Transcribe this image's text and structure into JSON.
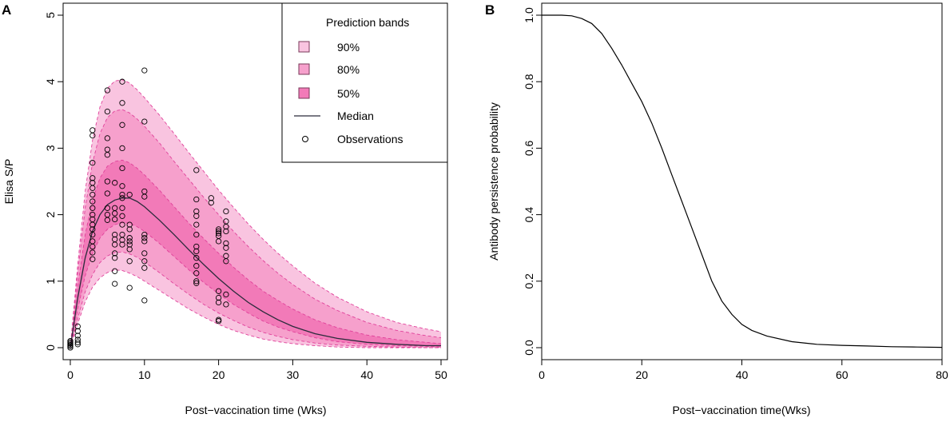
{
  "chart_data": [
    {
      "panel": "A",
      "type": "line",
      "xlabel": "Post−vaccination time (Wks)",
      "ylabel": "Elisa S/P",
      "xlim": [
        0,
        50
      ],
      "ylim": [
        0,
        5
      ],
      "x_ticks": [
        0,
        10,
        20,
        30,
        40,
        50
      ],
      "y_ticks": [
        0,
        1,
        2,
        3,
        4,
        5
      ],
      "legend": {
        "title": "Prediction bands",
        "position": "top-right",
        "entries": [
          {
            "label": "90%",
            "kind": "band",
            "color": "#f9c4e0"
          },
          {
            "label": "80%",
            "kind": "band",
            "color": "#f6a0cc"
          },
          {
            "label": "50%",
            "kind": "band",
            "color": "#f27ab8"
          },
          {
            "label": "Median",
            "kind": "line",
            "color": "#2b2b3b"
          },
          {
            "label": "Observations",
            "kind": "point",
            "color": "#000000"
          }
        ]
      },
      "x": [
        0,
        1,
        2,
        3,
        4,
        5,
        6,
        7,
        8,
        9,
        10,
        12,
        14,
        16,
        18,
        20,
        22,
        24,
        26,
        28,
        30,
        33,
        36,
        40,
        44,
        48,
        50
      ],
      "series": [
        {
          "name": "Median",
          "values": [
            0.0,
            0.75,
            1.35,
            1.75,
            2.0,
            2.15,
            2.22,
            2.25,
            2.25,
            2.2,
            2.12,
            1.92,
            1.7,
            1.47,
            1.25,
            1.04,
            0.85,
            0.68,
            0.54,
            0.42,
            0.32,
            0.21,
            0.14,
            0.08,
            0.05,
            0.03,
            0.03
          ]
        },
        {
          "name": "90% lower",
          "values": [
            0.0,
            0.36,
            0.69,
            0.91,
            1.05,
            1.13,
            1.17,
            1.16,
            1.12,
            1.07,
            1.0,
            0.86,
            0.72,
            0.58,
            0.46,
            0.35,
            0.26,
            0.19,
            0.13,
            0.09,
            0.06,
            0.03,
            0.01,
            0.0,
            0.0,
            0.0,
            0.0
          ]
        },
        {
          "name": "80% lower",
          "values": [
            0.0,
            0.44,
            0.84,
            1.1,
            1.28,
            1.38,
            1.43,
            1.44,
            1.41,
            1.36,
            1.29,
            1.13,
            0.96,
            0.8,
            0.65,
            0.52,
            0.41,
            0.31,
            0.23,
            0.17,
            0.12,
            0.07,
            0.04,
            0.02,
            0.01,
            0.0,
            0.0
          ]
        },
        {
          "name": "50% lower",
          "values": [
            0.0,
            0.58,
            1.08,
            1.42,
            1.65,
            1.78,
            1.85,
            1.88,
            1.87,
            1.82,
            1.75,
            1.57,
            1.37,
            1.17,
            0.98,
            0.81,
            0.65,
            0.52,
            0.4,
            0.31,
            0.24,
            0.15,
            0.09,
            0.05,
            0.03,
            0.02,
            0.01
          ]
        },
        {
          "name": "50% upper",
          "values": [
            0.0,
            0.92,
            1.7,
            2.22,
            2.55,
            2.73,
            2.8,
            2.82,
            2.78,
            2.7,
            2.6,
            2.37,
            2.12,
            1.87,
            1.64,
            1.42,
            1.21,
            1.02,
            0.85,
            0.71,
            0.58,
            0.42,
            0.3,
            0.19,
            0.12,
            0.08,
            0.06
          ]
        },
        {
          "name": "80% upper",
          "values": [
            0.0,
            1.12,
            2.1,
            2.78,
            3.22,
            3.46,
            3.56,
            3.58,
            3.53,
            3.44,
            3.33,
            3.08,
            2.8,
            2.53,
            2.26,
            2.0,
            1.75,
            1.52,
            1.31,
            1.12,
            0.95,
            0.73,
            0.56,
            0.38,
            0.26,
            0.18,
            0.15
          ]
        },
        {
          "name": "90% upper",
          "values": [
            0.0,
            1.25,
            2.35,
            3.12,
            3.62,
            3.9,
            4.01,
            4.03,
            3.98,
            3.88,
            3.76,
            3.5,
            3.22,
            2.93,
            2.65,
            2.37,
            2.11,
            1.86,
            1.63,
            1.42,
            1.23,
            0.97,
            0.76,
            0.54,
            0.38,
            0.28,
            0.24
          ]
        }
      ],
      "observations": [
        [
          0,
          0.0
        ],
        [
          0,
          0.02
        ],
        [
          0,
          0.04
        ],
        [
          0,
          0.06
        ],
        [
          0,
          0.08
        ],
        [
          0,
          0.1
        ],
        [
          1,
          0.05
        ],
        [
          1,
          0.08
        ],
        [
          1,
          0.12
        ],
        [
          1,
          0.18
        ],
        [
          1,
          0.25
        ],
        [
          1,
          0.32
        ],
        [
          3,
          3.27
        ],
        [
          3,
          3.19
        ],
        [
          3,
          2.78
        ],
        [
          3,
          2.55
        ],
        [
          3,
          2.48
        ],
        [
          3,
          2.4
        ],
        [
          3,
          2.3
        ],
        [
          3,
          2.2
        ],
        [
          3,
          2.1
        ],
        [
          3,
          2.0
        ],
        [
          3,
          1.93
        ],
        [
          3,
          1.85
        ],
        [
          3,
          1.78
        ],
        [
          3,
          1.7
        ],
        [
          3,
          1.6
        ],
        [
          3,
          1.52
        ],
        [
          3,
          1.43
        ],
        [
          3,
          1.33
        ],
        [
          5,
          3.87
        ],
        [
          5,
          3.55
        ],
        [
          5,
          3.15
        ],
        [
          5,
          2.98
        ],
        [
          5,
          2.9
        ],
        [
          5,
          2.5
        ],
        [
          5,
          2.32
        ],
        [
          5,
          2.1
        ],
        [
          5,
          2.0
        ],
        [
          5,
          1.92
        ],
        [
          6,
          2.48
        ],
        [
          6,
          2.1
        ],
        [
          6,
          2.02
        ],
        [
          6,
          1.93
        ],
        [
          6,
          1.7
        ],
        [
          6,
          1.63
        ],
        [
          6,
          1.55
        ],
        [
          6,
          1.42
        ],
        [
          6,
          1.35
        ],
        [
          6,
          1.15
        ],
        [
          6,
          0.96
        ],
        [
          7,
          4.0
        ],
        [
          7,
          3.68
        ],
        [
          7,
          3.35
        ],
        [
          7,
          3.0
        ],
        [
          7,
          2.7
        ],
        [
          7,
          2.43
        ],
        [
          7,
          2.3
        ],
        [
          7,
          2.25
        ],
        [
          7,
          2.1
        ],
        [
          7,
          1.98
        ],
        [
          7,
          1.85
        ],
        [
          7,
          1.7
        ],
        [
          7,
          1.62
        ],
        [
          7,
          1.55
        ],
        [
          8,
          2.3
        ],
        [
          8,
          1.85
        ],
        [
          8,
          1.78
        ],
        [
          8,
          1.65
        ],
        [
          8,
          1.6
        ],
        [
          8,
          1.55
        ],
        [
          8,
          1.48
        ],
        [
          8,
          1.3
        ],
        [
          8,
          0.9
        ],
        [
          10,
          4.17
        ],
        [
          10,
          3.4
        ],
        [
          10,
          2.35
        ],
        [
          10,
          2.27
        ],
        [
          10,
          1.7
        ],
        [
          10,
          1.65
        ],
        [
          10,
          1.6
        ],
        [
          10,
          1.42
        ],
        [
          10,
          1.3
        ],
        [
          10,
          1.2
        ],
        [
          10,
          0.71
        ],
        [
          17,
          2.67
        ],
        [
          17,
          2.23
        ],
        [
          17,
          2.05
        ],
        [
          17,
          1.98
        ],
        [
          17,
          1.85
        ],
        [
          17,
          1.7
        ],
        [
          17,
          1.52
        ],
        [
          17,
          1.45
        ],
        [
          17,
          1.35
        ],
        [
          17,
          1.23
        ],
        [
          17,
          1.12
        ],
        [
          17,
          1.0
        ],
        [
          17,
          0.97
        ],
        [
          19,
          2.25
        ],
        [
          19,
          2.18
        ],
        [
          20,
          1.78
        ],
        [
          20,
          1.75
        ],
        [
          20,
          1.72
        ],
        [
          20,
          1.68
        ],
        [
          20,
          1.6
        ],
        [
          20,
          0.85
        ],
        [
          20,
          0.75
        ],
        [
          20,
          0.68
        ],
        [
          20,
          0.42
        ],
        [
          20,
          0.4
        ],
        [
          21,
          2.05
        ],
        [
          21,
          1.9
        ],
        [
          21,
          1.82
        ],
        [
          21,
          1.75
        ],
        [
          21,
          1.57
        ],
        [
          21,
          1.5
        ],
        [
          21,
          1.38
        ],
        [
          21,
          1.3
        ],
        [
          21,
          0.8
        ],
        [
          21,
          0.65
        ]
      ]
    },
    {
      "panel": "B",
      "type": "line",
      "xlabel": "Post−vaccination time(Wks)",
      "ylabel": "Antibody persistence probability",
      "xlim": [
        0,
        80
      ],
      "ylim": [
        0,
        1
      ],
      "x_ticks": [
        0,
        20,
        40,
        60,
        80
      ],
      "y_ticks": [
        "0.0",
        "0.2",
        "0.4",
        "0.6",
        "0.8",
        "1.0"
      ],
      "series": [
        {
          "name": "Antibody persistence probability",
          "x": [
            0,
            4,
            6,
            8,
            10,
            12,
            14,
            16,
            18,
            20,
            22,
            24,
            26,
            28,
            30,
            32,
            34,
            36,
            38,
            40,
            42,
            45,
            50,
            55,
            60,
            65,
            70,
            75,
            80
          ],
          "values": [
            1.0,
            1.0,
            0.998,
            0.99,
            0.975,
            0.945,
            0.9,
            0.85,
            0.795,
            0.74,
            0.675,
            0.6,
            0.52,
            0.44,
            0.36,
            0.28,
            0.2,
            0.14,
            0.1,
            0.07,
            0.052,
            0.035,
            0.018,
            0.01,
            0.007,
            0.005,
            0.003,
            0.002,
            0.001
          ]
        }
      ]
    }
  ]
}
